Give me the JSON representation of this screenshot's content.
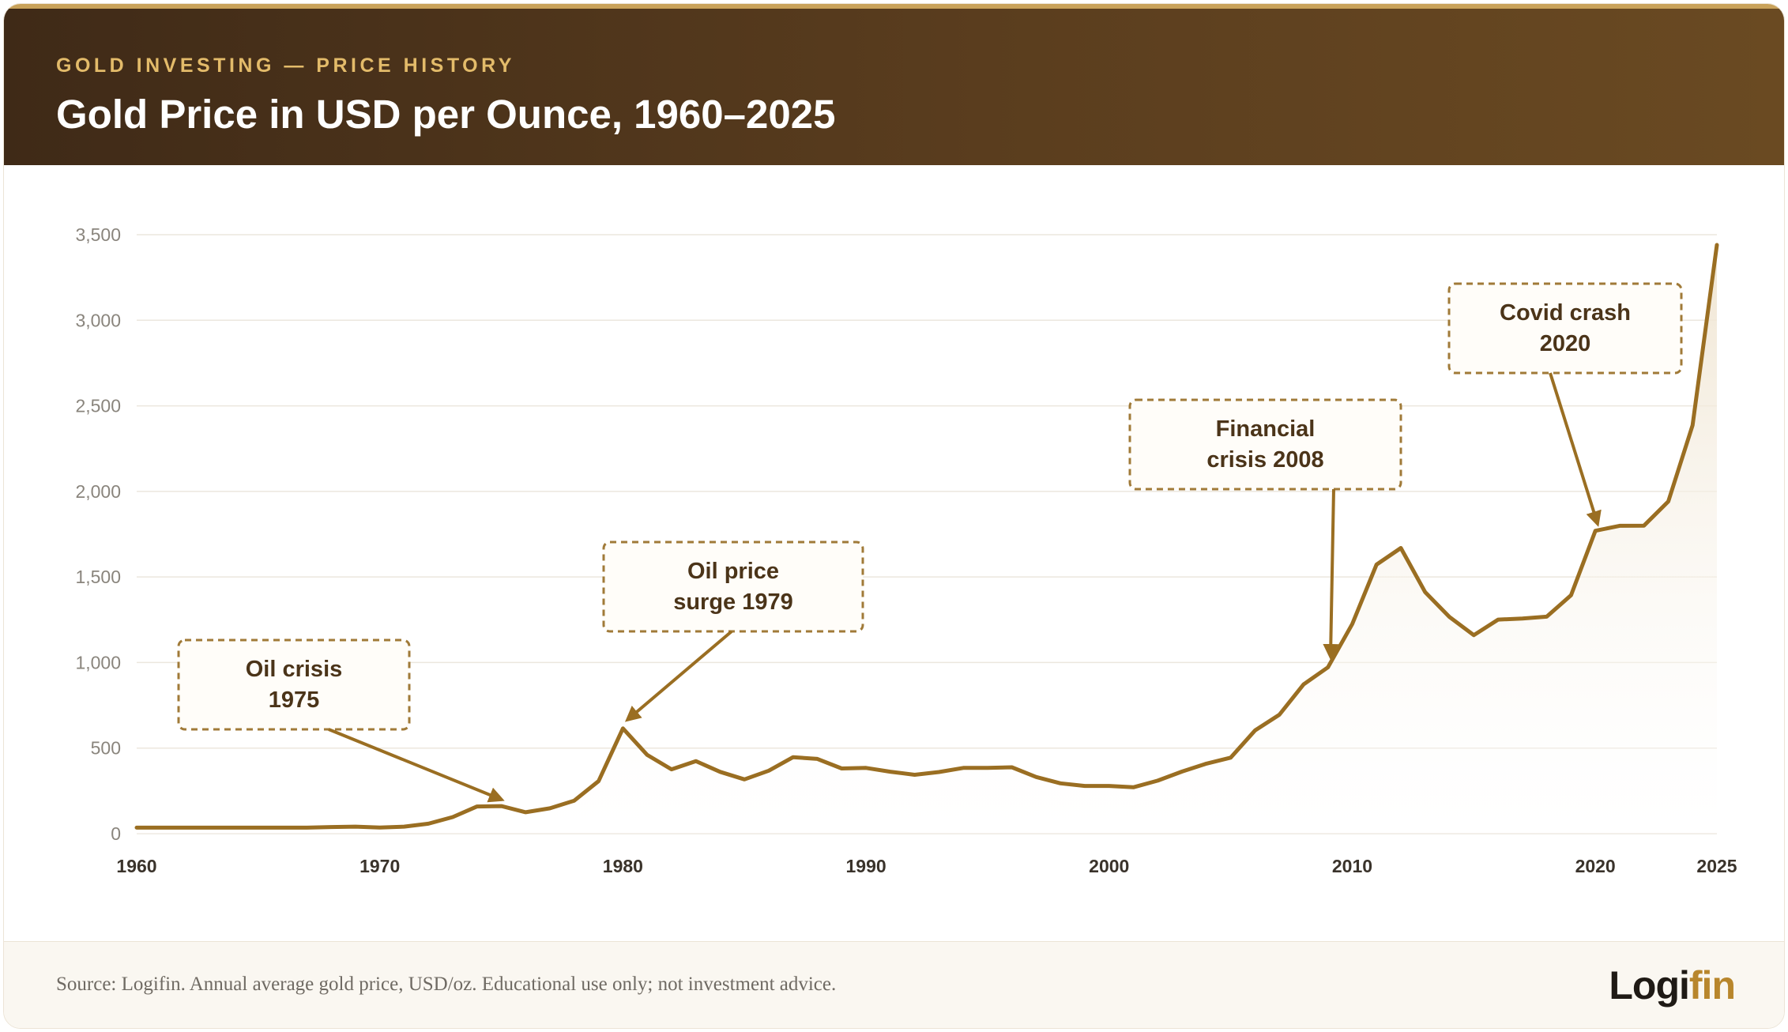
{
  "header": {
    "eyebrow": "GOLD INVESTING — PRICE HISTORY",
    "title": "Gold Price in USD per Ounce, 1960–2025"
  },
  "footer": {
    "source": "Source: Logifin. Annual average gold price, USD/oz. Educational use only; not investment advice.",
    "logo_main": "Logi",
    "logo_accent": "fin"
  },
  "colors": {
    "line": "#9a6e22",
    "area_top": "#efe6d6",
    "grid": "#ece7de",
    "header_dark": "#3f2a17",
    "accent": "#e3bb6a"
  },
  "chart_data": {
    "type": "area",
    "title": "Gold Price in USD per Ounce, 1960–2025",
    "xlabel": "",
    "ylabel": "",
    "xlim": [
      1960,
      2025
    ],
    "ylim": [
      0,
      3500
    ],
    "x_ticks": [
      1960,
      1970,
      1980,
      1990,
      2000,
      2010,
      2020,
      2025
    ],
    "y_ticks": [
      0,
      500,
      1000,
      1500,
      2000,
      2500,
      3000,
      3500
    ],
    "y_tick_labels": [
      "0",
      "500",
      "1,000",
      "1,500",
      "2,000",
      "2,500",
      "3,000",
      "3,500"
    ],
    "grid": true,
    "legend": "none",
    "series": [
      {
        "x": [
          1960,
          1961,
          1962,
          1963,
          1964,
          1965,
          1966,
          1967,
          1968,
          1969,
          1970,
          1971,
          1972,
          1973,
          1974,
          1975,
          1976,
          1977,
          1978,
          1979,
          1980,
          1981,
          1982,
          1983,
          1984,
          1985,
          1986,
          1987,
          1988,
          1989,
          1990,
          1991,
          1992,
          1993,
          1994,
          1995,
          1996,
          1997,
          1998,
          1999,
          2000,
          2001,
          2002,
          2003,
          2004,
          2005,
          2006,
          2007,
          2008,
          2009,
          2010,
          2011,
          2012,
          2013,
          2014,
          2015,
          2016,
          2017,
          2018,
          2019,
          2020,
          2021,
          2022,
          2023,
          2024,
          2025
        ],
        "values": [
          35,
          35,
          35,
          35,
          35,
          35,
          35,
          35,
          39,
          41,
          36,
          41,
          58,
          97,
          159,
          161,
          125,
          148,
          193,
          307,
          615,
          460,
          376,
          424,
          361,
          317,
          368,
          447,
          437,
          381,
          384,
          362,
          344,
          360,
          384,
          384,
          388,
          331,
          294,
          279,
          279,
          271,
          310,
          363,
          409,
          444,
          603,
          695,
          872,
          972,
          1225,
          1572,
          1669,
          1411,
          1266,
          1160,
          1251,
          1257,
          1268,
          1393,
          1770,
          1799,
          1800,
          1941,
          2386,
          3440
        ]
      }
    ],
    "annotations": [
      {
        "lines": [
          "Oil crisis",
          "1975"
        ],
        "year": 1975,
        "value": 161
      },
      {
        "lines": [
          "Oil price",
          "surge 1979"
        ],
        "year": 1980,
        "value": 615
      },
      {
        "lines": [
          "Financial",
          "crisis 2008"
        ],
        "year": 2009,
        "value": 972
      },
      {
        "lines": [
          "Covid crash",
          "2020"
        ],
        "year": 2020,
        "value": 1770
      }
    ]
  }
}
